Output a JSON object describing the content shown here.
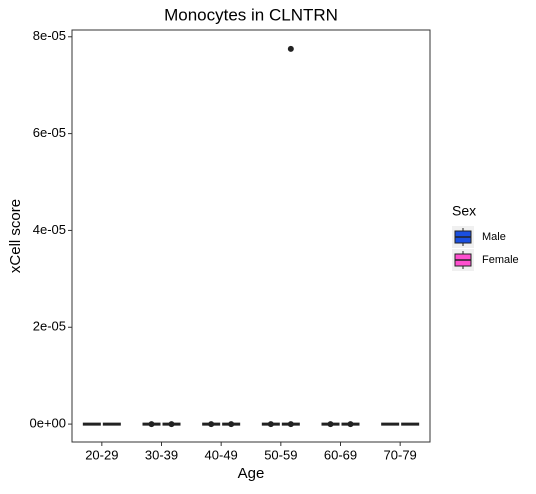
{
  "chart_data": {
    "type": "box",
    "title": "Monocytes in CLNTRN",
    "x_label": "Age",
    "y_label": "xCell score",
    "categories": [
      "20-29",
      "30-39",
      "40-49",
      "50-59",
      "60-69",
      "70-79"
    ],
    "legend_title": "Sex",
    "series": [
      {
        "name": "Male",
        "color": "#1a4fe0",
        "whisker_low": [
          0,
          0,
          0,
          0,
          0,
          0
        ],
        "q1": [
          0,
          0,
          0,
          0,
          0,
          0
        ],
        "median": [
          0,
          0,
          0,
          0,
          0,
          0
        ],
        "q3": [
          0,
          0,
          0,
          0,
          0,
          0
        ],
        "whisker_high": [
          0,
          0,
          0,
          0,
          0,
          0
        ],
        "outliers": [
          [],
          [
            0
          ],
          [
            0
          ],
          [
            0
          ],
          [
            0
          ],
          []
        ]
      },
      {
        "name": "Female",
        "color": "#ff4fcf",
        "whisker_low": [
          0,
          0,
          0,
          0,
          0,
          0
        ],
        "q1": [
          0,
          0,
          0,
          0,
          0,
          0
        ],
        "median": [
          0,
          0,
          0,
          0,
          0,
          0
        ],
        "q3": [
          0,
          0,
          0,
          0,
          0,
          0
        ],
        "whisker_high": [
          0,
          0,
          0,
          0,
          0,
          0
        ],
        "outliers": [
          [],
          [
            0
          ],
          [
            0
          ],
          [
            0,
            7.75e-05
          ],
          [
            0
          ],
          []
        ]
      }
    ],
    "ylim": [
      -3.7e-06,
      8.14e-05
    ],
    "yticks": [
      {
        "value": 0,
        "label": "0e+00"
      },
      {
        "value": 2e-05,
        "label": "2e-05"
      },
      {
        "value": 4e-05,
        "label": "4e-05"
      },
      {
        "value": 6e-05,
        "label": "6e-05"
      },
      {
        "value": 8e-05,
        "label": "8e-05"
      }
    ],
    "legend_position": "right"
  }
}
